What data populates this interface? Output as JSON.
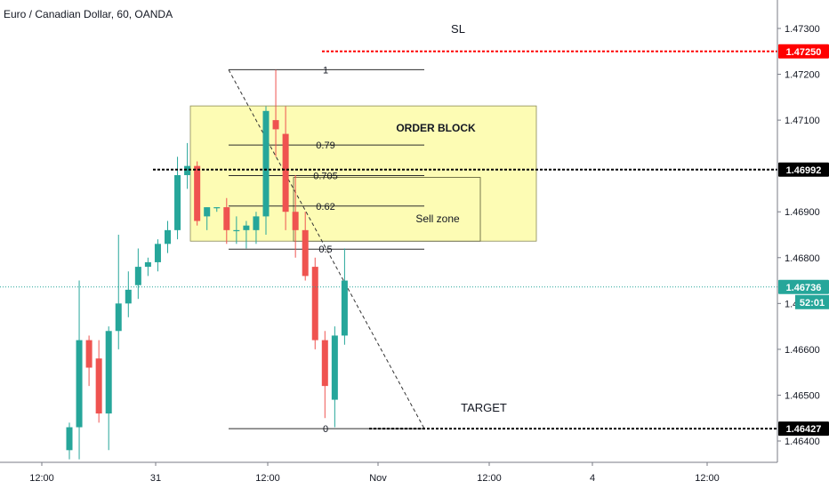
{
  "header": {
    "title": "Euro / Canadian Dollar, 60, OANDA"
  },
  "colors": {
    "up": "#26a69a",
    "down": "#ef5350",
    "sl_line": "#ff0000",
    "price_line": "#26a69a",
    "order_block_fill": "#fdfcb4",
    "axis_text": "#131722",
    "grid_border": "#787b86"
  },
  "chart_data": {
    "type": "candlestick",
    "symbol": "Euro / Canadian Dollar, 60, OANDA",
    "x_tick_labels": [
      "12:00",
      "31",
      "12:00",
      "Nov",
      "12:00",
      "4",
      "12:00"
    ],
    "y_ticks": [
      1.464,
      1.465,
      1.466,
      1.467,
      1.468,
      1.469,
      1.471,
      1.472,
      1.473
    ],
    "y_tick_labels": [
      "1.46400",
      "1.46500",
      "1.46600",
      "1.46700",
      "1.46800",
      "1.46900",
      "1.47100",
      "1.47200",
      "1.47300"
    ],
    "ylim": [
      1.4636,
      1.4749
    ],
    "candles": [
      {
        "i": 0,
        "o": 1.4638,
        "h": 1.4644,
        "l": 1.4636,
        "c": 1.4643
      },
      {
        "i": 1,
        "o": 1.4643,
        "h": 1.4675,
        "l": 1.4636,
        "c": 1.4662
      },
      {
        "i": 2,
        "o": 1.4662,
        "h": 1.4663,
        "l": 1.4652,
        "c": 1.4656
      },
      {
        "i": 3,
        "o": 1.4658,
        "h": 1.4662,
        "l": 1.4644,
        "c": 1.4646
      },
      {
        "i": 4,
        "o": 1.4646,
        "h": 1.4665,
        "l": 1.4638,
        "c": 1.4664
      },
      {
        "i": 5,
        "o": 1.4664,
        "h": 1.4685,
        "l": 1.466,
        "c": 1.467
      },
      {
        "i": 6,
        "o": 1.467,
        "h": 1.4677,
        "l": 1.4667,
        "c": 1.4673
      },
      {
        "i": 7,
        "o": 1.4674,
        "h": 1.4682,
        "l": 1.4671,
        "c": 1.4678
      },
      {
        "i": 8,
        "o": 1.4678,
        "h": 1.468,
        "l": 1.4676,
        "c": 1.4679
      },
      {
        "i": 9,
        "o": 1.4679,
        "h": 1.4684,
        "l": 1.4677,
        "c": 1.4683
      },
      {
        "i": 10,
        "o": 1.4683,
        "h": 1.4688,
        "l": 1.4681,
        "c": 1.4686
      },
      {
        "i": 11,
        "o": 1.4686,
        "h": 1.4702,
        "l": 1.4684,
        "c": 1.4698
      },
      {
        "i": 12,
        "o": 1.4698,
        "h": 1.4705,
        "l": 1.4695,
        "c": 1.47
      },
      {
        "i": 13,
        "o": 1.47,
        "h": 1.4701,
        "l": 1.4687,
        "c": 1.4688
      },
      {
        "i": 14,
        "o": 1.4689,
        "h": 1.4691,
        "l": 1.4686,
        "c": 1.4691
      },
      {
        "i": 15,
        "o": 1.4691,
        "h": 1.4691,
        "l": 1.469,
        "c": 1.4691
      },
      {
        "i": 16,
        "o": 1.4691,
        "h": 1.4693,
        "l": 1.4683,
        "c": 1.4686
      },
      {
        "i": 17,
        "o": 1.4686,
        "h": 1.4689,
        "l": 1.4683,
        "c": 1.4686
      },
      {
        "i": 18,
        "o": 1.4686,
        "h": 1.4688,
        "l": 1.4682,
        "c": 1.4687
      },
      {
        "i": 19,
        "o": 1.4686,
        "h": 1.469,
        "l": 1.4683,
        "c": 1.4689
      },
      {
        "i": 20,
        "o": 1.4689,
        "h": 1.4713,
        "l": 1.4685,
        "c": 1.4712
      },
      {
        "i": 21,
        "o": 1.471,
        "h": 1.4721,
        "l": 1.4702,
        "c": 1.4708
      },
      {
        "i": 22,
        "o": 1.4707,
        "h": 1.4713,
        "l": 1.4686,
        "c": 1.469
      },
      {
        "i": 23,
        "o": 1.469,
        "h": 1.4698,
        "l": 1.468,
        "c": 1.4686
      },
      {
        "i": 24,
        "o": 1.4686,
        "h": 1.469,
        "l": 1.4675,
        "c": 1.4676
      },
      {
        "i": 25,
        "o": 1.4678,
        "h": 1.468,
        "l": 1.466,
        "c": 1.4662
      },
      {
        "i": 26,
        "o": 1.4662,
        "h": 1.4664,
        "l": 1.4645,
        "c": 1.4652
      },
      {
        "i": 27,
        "o": 1.4649,
        "h": 1.4665,
        "l": 1.4643,
        "c": 1.4663
      },
      {
        "i": 28,
        "o": 1.4663,
        "h": 1.4682,
        "l": 1.4661,
        "c": 1.4675
      }
    ],
    "price_levels": [
      {
        "label": "1.47250",
        "value": 1.4725,
        "style": "sl"
      },
      {
        "label": "1.46992",
        "value": 1.46992,
        "style": "black"
      },
      {
        "label": "1.46736",
        "value": 1.46736,
        "style": "current",
        "countdown": "52:01"
      },
      {
        "label": "1.46427",
        "value": 1.46427,
        "style": "black"
      }
    ],
    "fibonacci": {
      "high": 1.4721,
      "low": 1.46427,
      "levels": [
        {
          "ratio": 1,
          "label": "1"
        },
        {
          "ratio": 0.79,
          "label": "0.79"
        },
        {
          "ratio": 0.705,
          "label": "0.705"
        },
        {
          "ratio": 0.62,
          "label": "0.62"
        },
        {
          "ratio": 0.5,
          "label": "0.5"
        },
        {
          "ratio": 0,
          "label": "0"
        }
      ]
    },
    "annotations": {
      "sl": "SL",
      "order_block": "ORDER BLOCK",
      "sell_zone": "Sell zone",
      "target": "TARGET"
    }
  }
}
